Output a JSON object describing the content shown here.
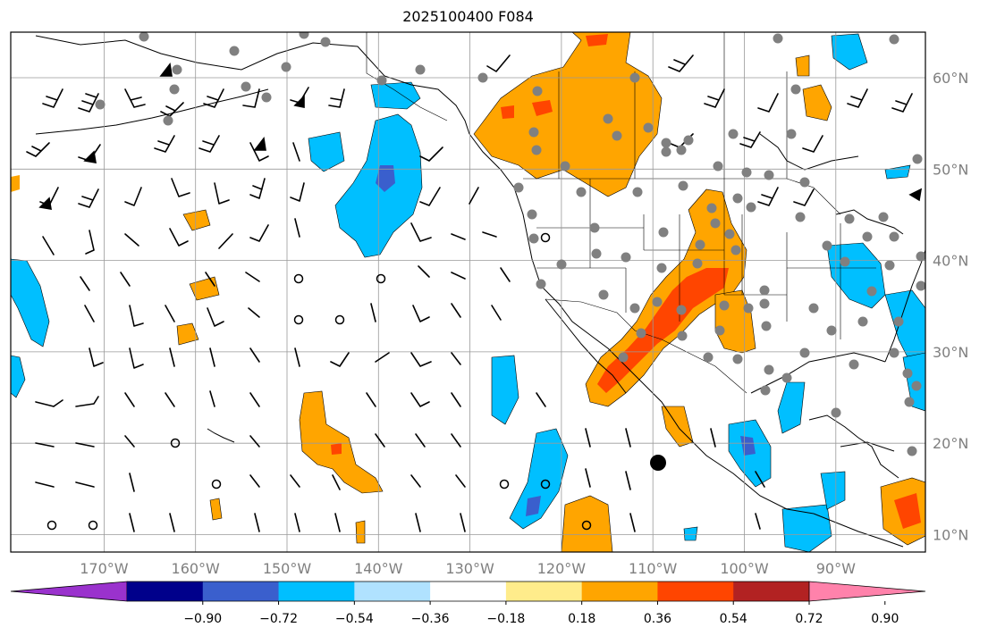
{
  "title": "2025100400 F084",
  "map": {
    "lon_labels": [
      "170°W",
      "160°W",
      "150°W",
      "140°W",
      "130°W",
      "120°W",
      "110°W",
      "100°W",
      "90°W"
    ],
    "lon_values": [
      -170,
      -160,
      -150,
      -140,
      -130,
      -120,
      -110,
      -100,
      -90
    ],
    "lat_labels": [
      "60°N",
      "50°N",
      "40°N",
      "30°N",
      "20°N",
      "10°N"
    ],
    "lat_values": [
      60,
      50,
      40,
      30,
      20,
      10
    ],
    "lon_range": [
      -180,
      -80
    ],
    "lat_range": [
      8,
      65
    ],
    "grid": true
  },
  "colorbar": {
    "tick_labels": [
      "−0.90",
      "−0.72",
      "−0.54",
      "−0.36",
      "−0.18",
      "0.18",
      "0.36",
      "0.54",
      "0.72",
      "0.90"
    ],
    "colors": [
      "#9a32cd",
      "#00008b",
      "#3a5fcd",
      "#00bfff",
      "#b0e2ff",
      "#ffffff",
      "#ffec8b",
      "#ffa500",
      "#ff4500",
      "#b22222",
      "#ff82ab"
    ]
  },
  "legend_colors": {
    "neg_strong": "#3a5fcd",
    "neg": "#00bfff",
    "pos": "#ffa500",
    "pos_strong": "#ff4500",
    "station": "#808080"
  }
}
